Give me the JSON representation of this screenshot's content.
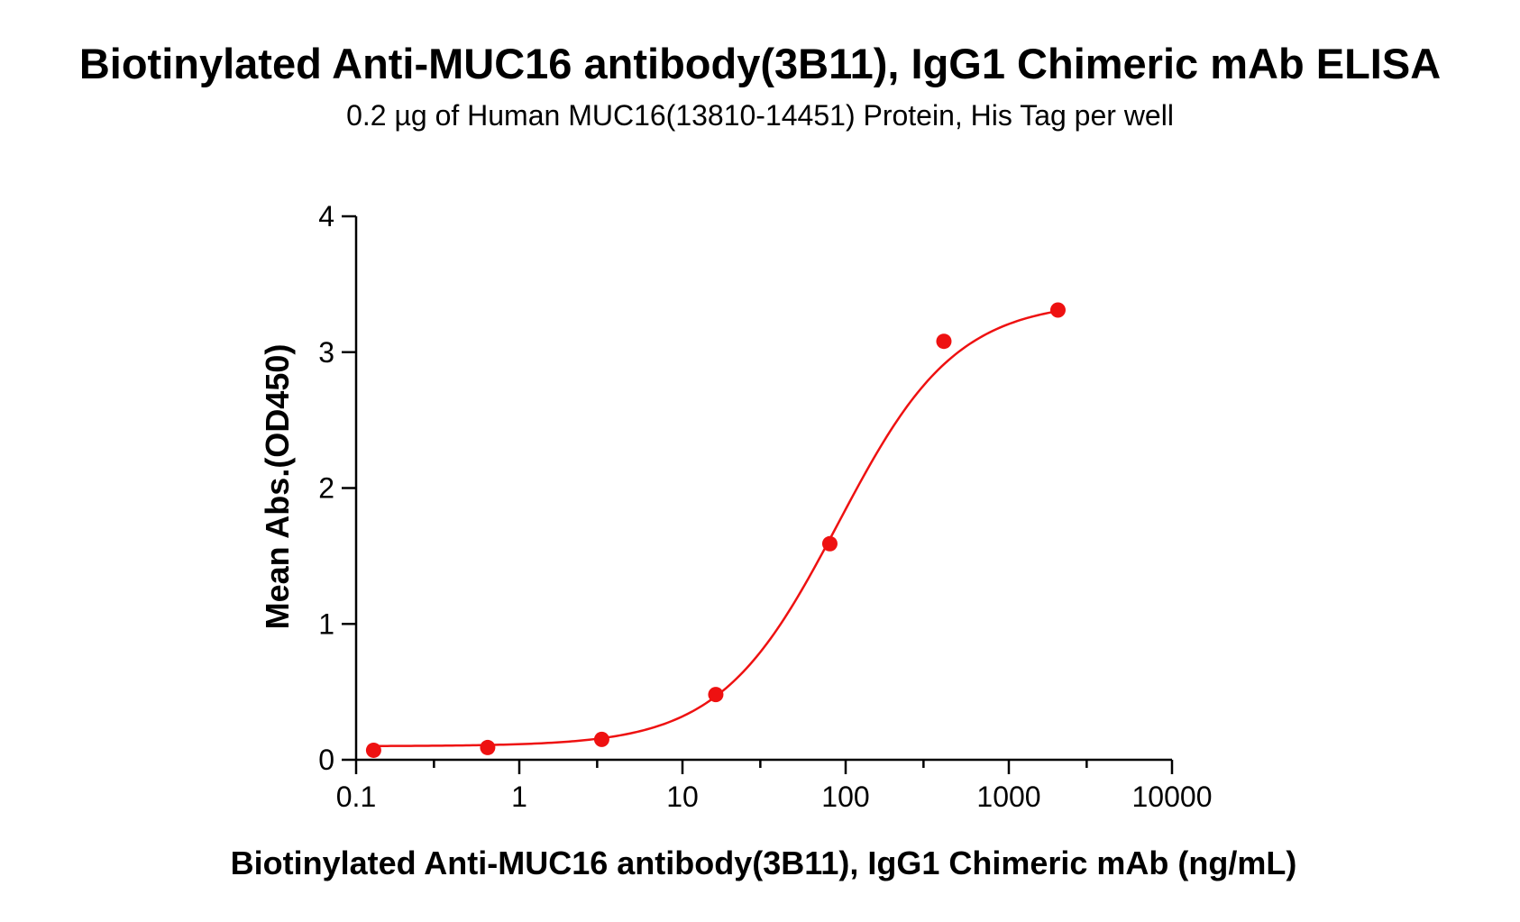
{
  "chart_data": {
    "type": "scatter",
    "title": "Biotinylated Anti-MUC16 antibody(3B11), IgG1 Chimeric mAb ELISA",
    "subtitle": "0.2 µg of Human MUC16(13810-14451) Protein, His Tag per well",
    "xlabel": "Biotinylated Anti-MUC16 antibody(3B11), IgG1 Chimeric mAb (ng/mL)",
    "ylabel": "Mean Abs.(OD450)",
    "x_scale": "log",
    "xlim": [
      0.1,
      10000
    ],
    "ylim": [
      0,
      4
    ],
    "x_ticks": [
      {
        "value": 0.1,
        "label": "0.1"
      },
      {
        "value": 1,
        "label": "1"
      },
      {
        "value": 10,
        "label": "10"
      },
      {
        "value": 100,
        "label": "100"
      },
      {
        "value": 1000,
        "label": "1000"
      },
      {
        "value": 10000,
        "label": "10000"
      }
    ],
    "y_ticks": [
      {
        "value": 0,
        "label": "0"
      },
      {
        "value": 1,
        "label": "1"
      },
      {
        "value": 2,
        "label": "2"
      },
      {
        "value": 3,
        "label": "3"
      },
      {
        "value": 4,
        "label": "4"
      }
    ],
    "grid": false,
    "legend": "none",
    "series": [
      {
        "color": "#ee1111",
        "points": [
          {
            "x": 0.128,
            "y": 0.07
          },
          {
            "x": 0.64,
            "y": 0.09
          },
          {
            "x": 3.2,
            "y": 0.15
          },
          {
            "x": 16,
            "y": 0.48
          },
          {
            "x": 80,
            "y": 1.59
          },
          {
            "x": 400,
            "y": 3.08
          },
          {
            "x": 2000,
            "y": 3.31
          }
        ],
        "fit": {
          "model": "4PL",
          "bottom": 0.1,
          "top": 3.38,
          "ec50": 90,
          "hill": 1.2,
          "x_range": [
            0.128,
            2000
          ]
        }
      }
    ]
  }
}
